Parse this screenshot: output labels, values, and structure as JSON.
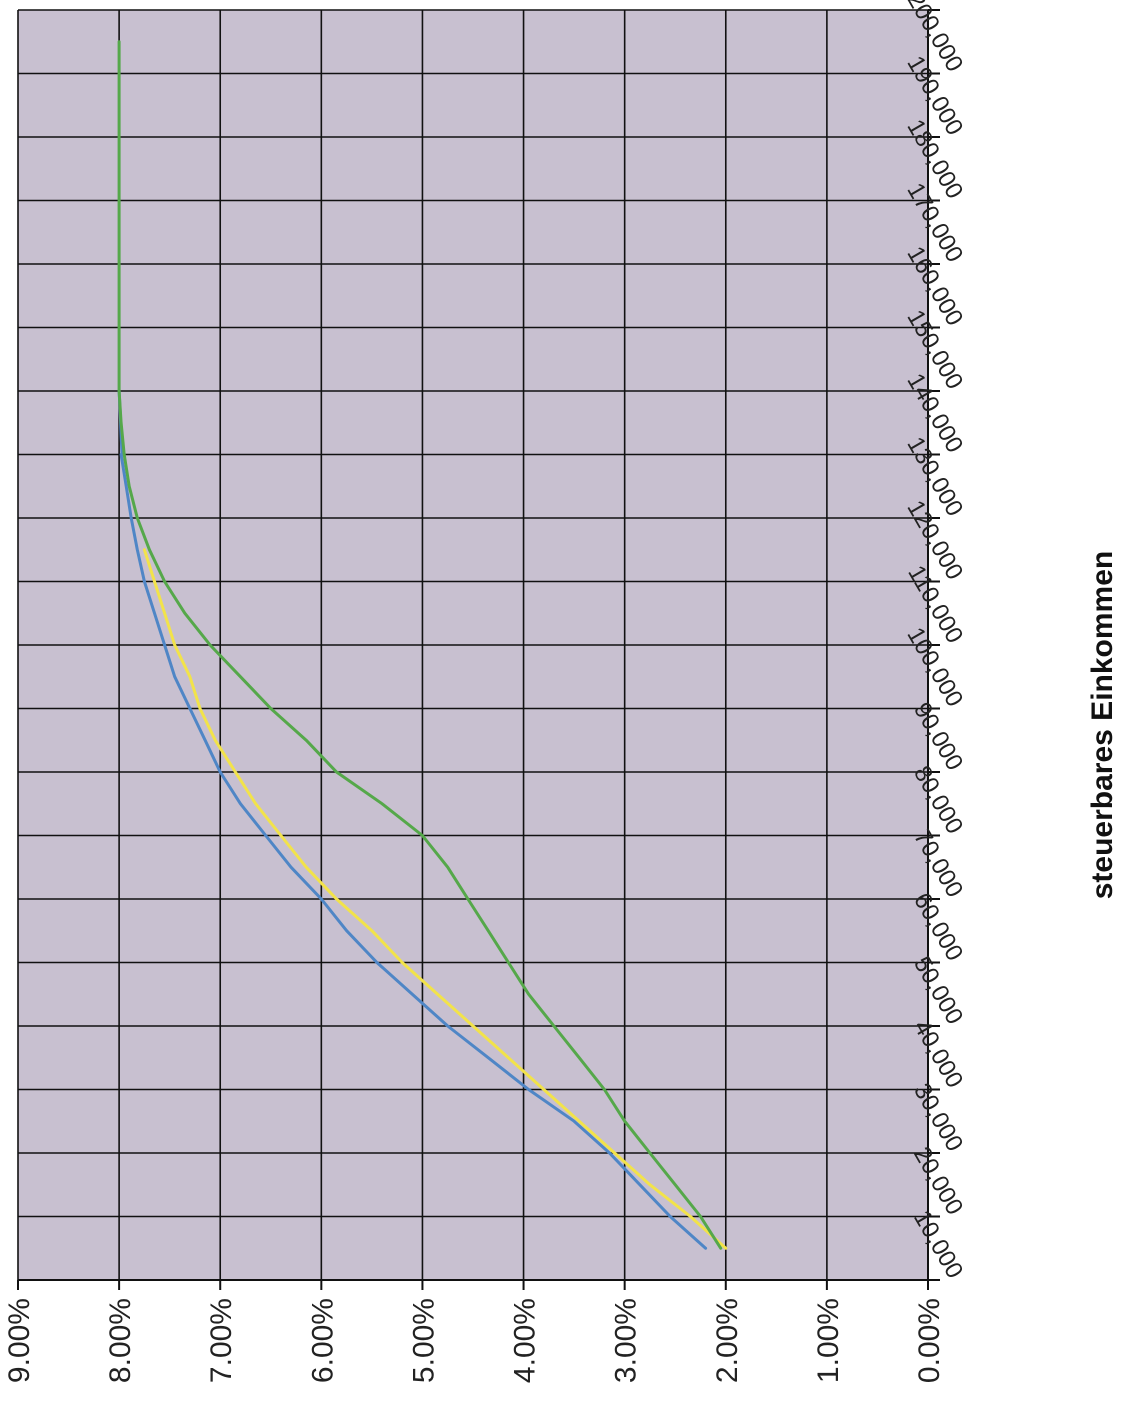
{
  "chart_data": {
    "type": "line",
    "title": "",
    "xlabel": "steuerbares Einkommen",
    "ylabel": "",
    "xlim": [
      10000,
      210000
    ],
    "ylim": [
      0,
      9
    ],
    "grid": true,
    "plot_background": "#c8c0d0",
    "x_ticks": [
      10000,
      20000,
      30000,
      40000,
      50000,
      60000,
      70000,
      80000,
      90000,
      100000,
      110000,
      120000,
      130000,
      140000,
      150000,
      160000,
      170000,
      180000,
      190000,
      200000
    ],
    "x_tick_labels": [
      "10,000",
      "20,000",
      "30,000",
      "40,000",
      "50,000",
      "60,000",
      "70,000",
      "80,000",
      "90,000",
      "100,000",
      "110,000",
      "120,000",
      "130,000",
      "140,000",
      "150,000",
      "160,000",
      "170,000",
      "180,000",
      "190,000",
      "200,000"
    ],
    "y_ticks": [
      0,
      1,
      2,
      3,
      4,
      5,
      6,
      7,
      8,
      9
    ],
    "y_tick_labels": [
      "0.00%",
      "1.00%",
      "2.00%",
      "3.00%",
      "4.00%",
      "5.00%",
      "6.00%",
      "7.00%",
      "8.00%",
      "9.00%"
    ],
    "series": [
      {
        "color": "#4f86c6",
        "x": [
          15000,
          20000,
          25000,
          30000,
          35000,
          40000,
          45000,
          50000,
          55000,
          60000,
          65000,
          70000,
          75000,
          80000,
          85000,
          90000,
          95000,
          100000,
          105000,
          110000,
          115000,
          120000,
          125000,
          130000,
          135000,
          140000
        ],
        "y": [
          2.2,
          2.55,
          2.85,
          3.15,
          3.5,
          3.95,
          4.35,
          4.75,
          5.1,
          5.45,
          5.75,
          6.0,
          6.3,
          6.55,
          6.8,
          7.0,
          7.15,
          7.3,
          7.45,
          7.55,
          7.65,
          7.75,
          7.82,
          7.88,
          7.93,
          7.98
        ]
      },
      {
        "color": "#4f86c6",
        "x": [
          140000,
          143000,
          147000,
          150000
        ],
        "y": [
          7.97,
          7.98,
          7.99,
          8.0
        ]
      },
      {
        "color": "#f2e34a",
        "x": [
          15000,
          20000,
          25000,
          30000,
          35000,
          40000,
          45000,
          50000,
          55000,
          60000,
          65000,
          70000,
          75000,
          80000,
          85000,
          90000,
          95000,
          100000,
          105000,
          110000,
          115000,
          120000,
          125000
        ],
        "y": [
          2.0,
          2.35,
          2.75,
          3.1,
          3.45,
          3.8,
          4.15,
          4.5,
          4.85,
          5.2,
          5.5,
          5.85,
          6.15,
          6.4,
          6.65,
          6.85,
          7.05,
          7.2,
          7.3,
          7.45,
          7.55,
          7.65,
          7.75
        ]
      },
      {
        "color": "#55a84a",
        "x": [
          15000,
          20000,
          25000,
          30000,
          35000,
          40000,
          45000,
          50000,
          55000,
          60000,
          65000,
          70000,
          75000,
          80000,
          85000,
          90000,
          95000,
          100000,
          105000,
          110000,
          115000,
          120000,
          125000,
          130000,
          135000,
          140000,
          145000,
          150000,
          155000,
          160000,
          170000,
          180000,
          190000,
          200000,
          205000
        ],
        "y": [
          2.05,
          2.25,
          2.5,
          2.75,
          3.0,
          3.2,
          3.45,
          3.7,
          3.95,
          4.15,
          4.35,
          4.55,
          4.75,
          5.0,
          5.4,
          5.85,
          6.15,
          6.5,
          6.8,
          7.1,
          7.35,
          7.55,
          7.7,
          7.82,
          7.9,
          7.95,
          7.98,
          8.0,
          8.0,
          8.0,
          8.0,
          8.0,
          8.0,
          8.0,
          8.0
        ]
      }
    ]
  }
}
